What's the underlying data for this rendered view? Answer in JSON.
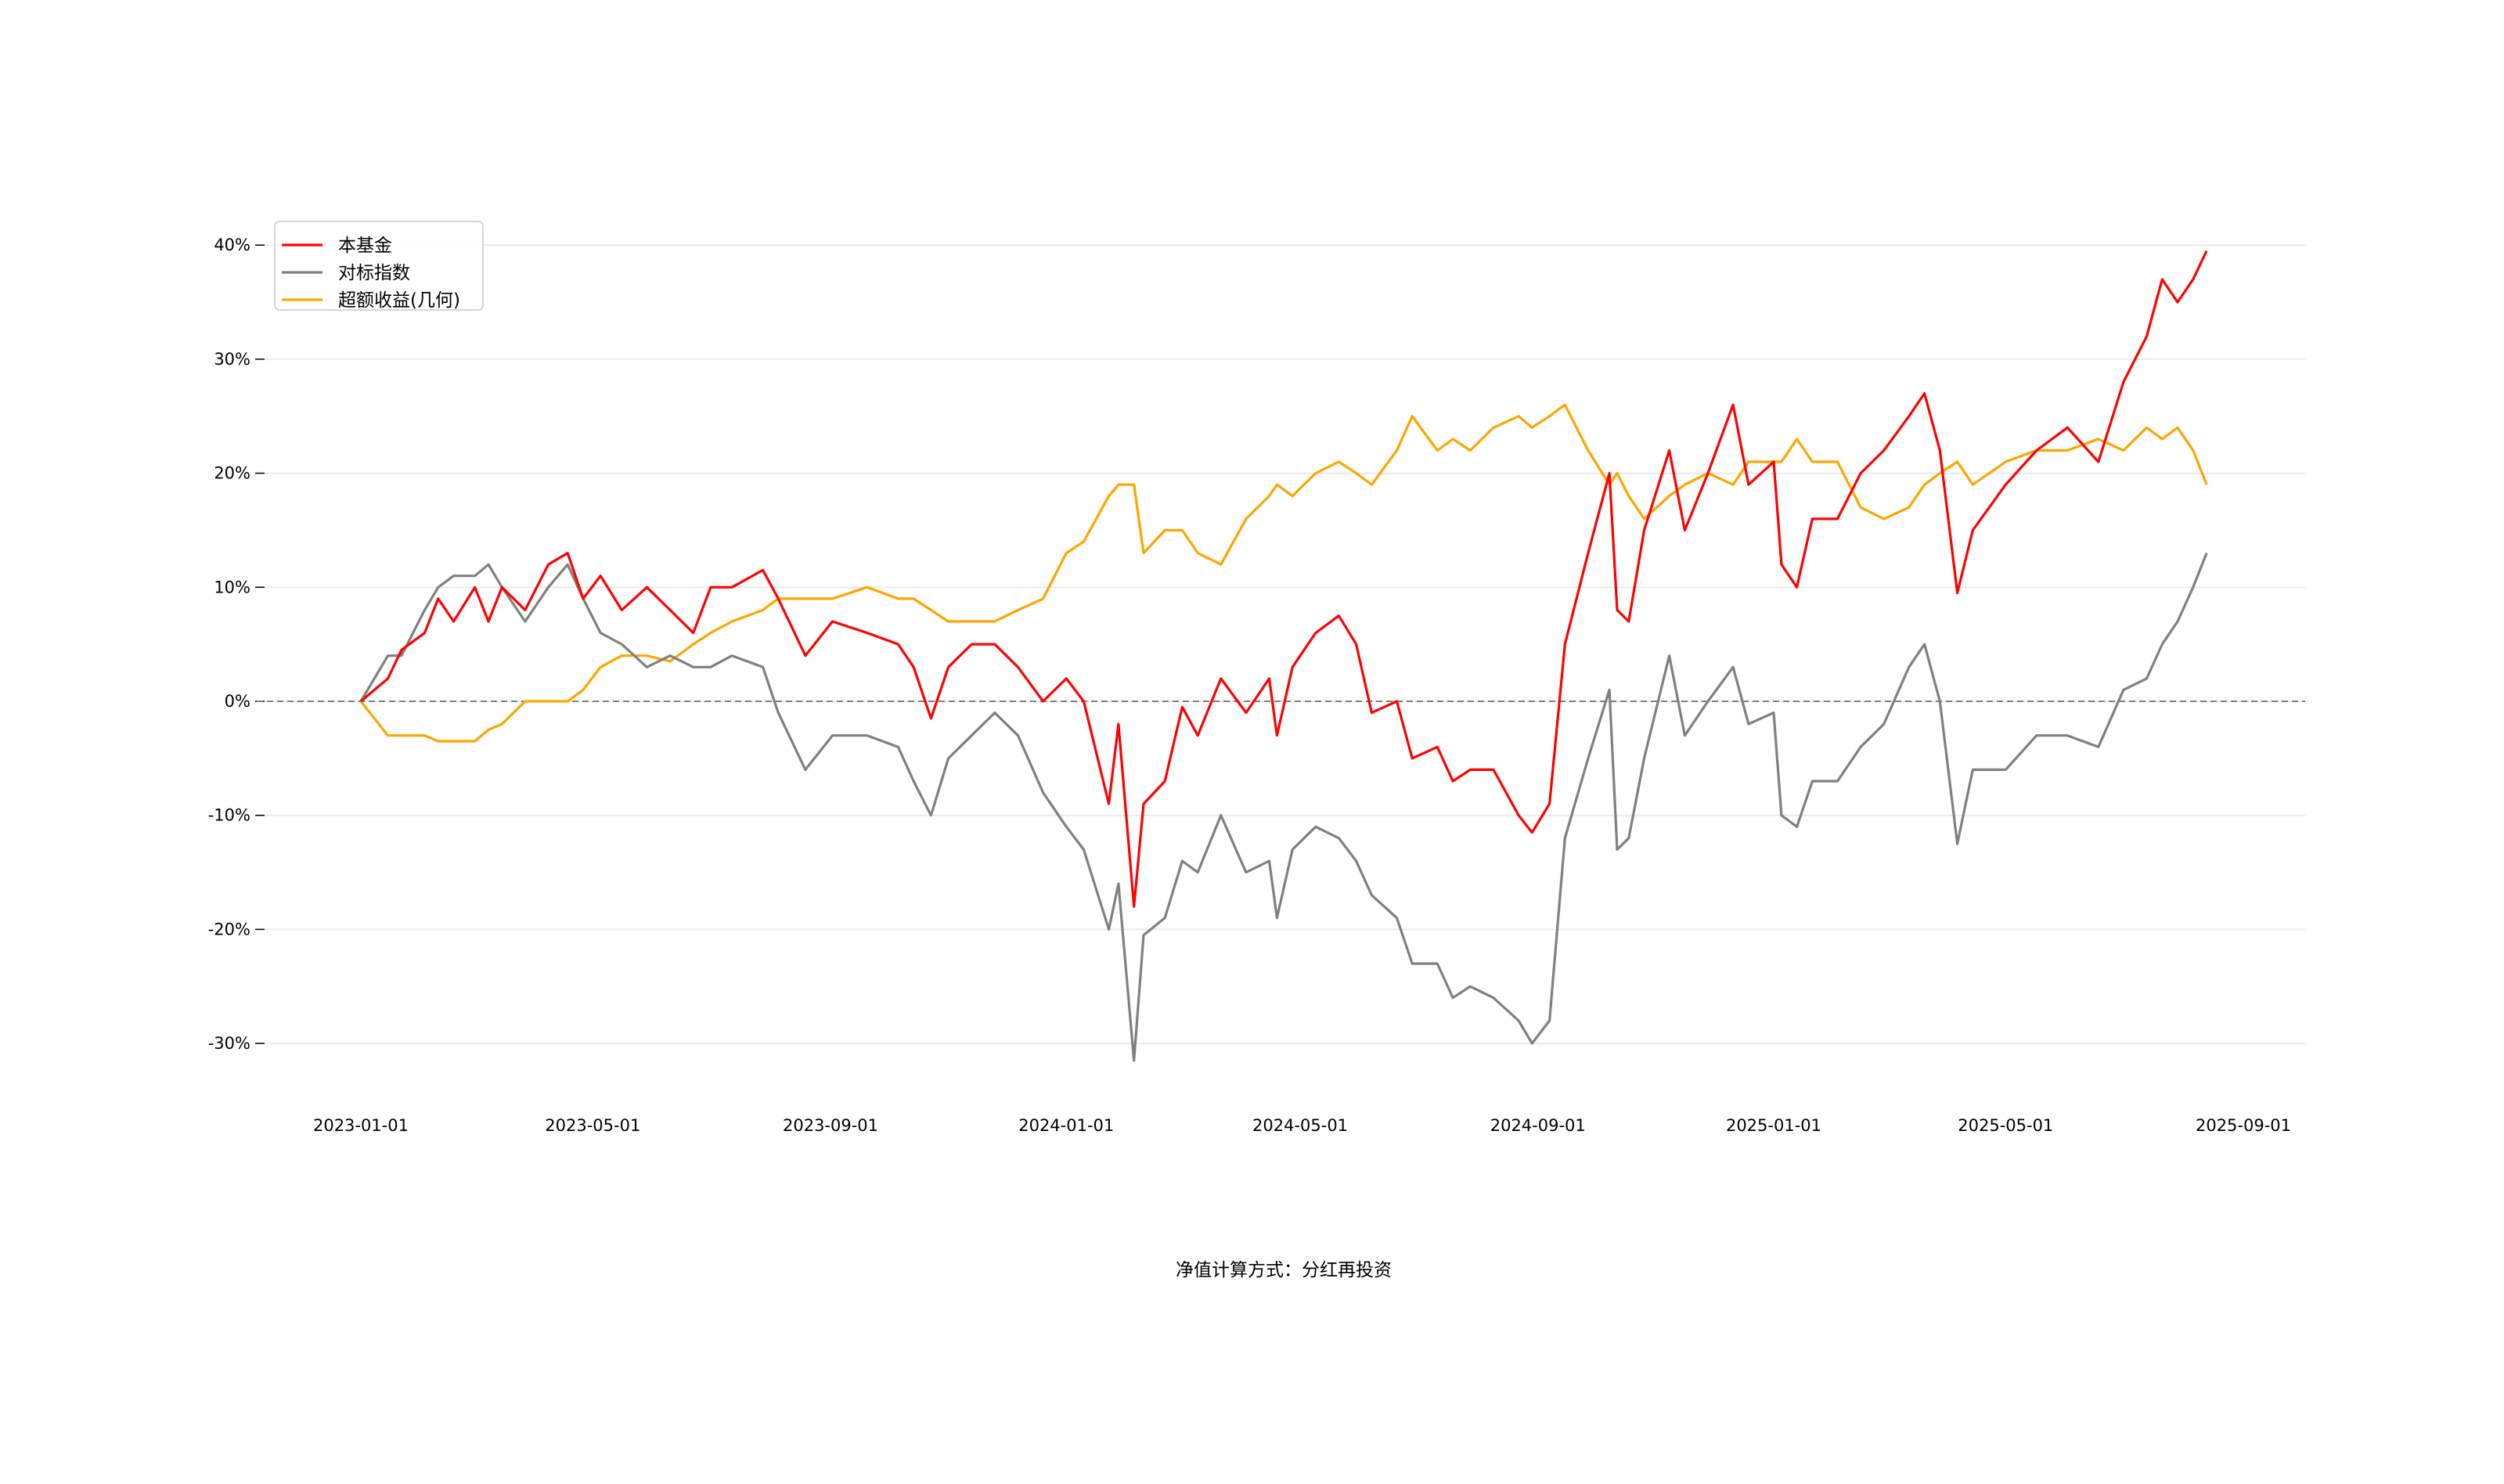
{
  "chart_data": {
    "type": "line",
    "title": "",
    "caption": "净值计算方式：分红再投资",
    "xlabel": "",
    "ylabel": "",
    "ylim": [
      -35.5,
      44
    ],
    "yticks": [
      40,
      30,
      20,
      10,
      0,
      -10,
      -20,
      -30
    ],
    "ytick_labels": [
      "40%",
      "30%",
      "20%",
      "10%",
      "0%",
      "-10%",
      "-20%",
      "-30%"
    ],
    "xticks": [
      "2023-01-01",
      "2023-05-01",
      "2023-09-01",
      "2024-01-01",
      "2024-05-01",
      "2024-09-01",
      "2025-01-01",
      "2025-05-01",
      "2025-09-01"
    ],
    "grid": "horizontal",
    "legend_position": "top-left",
    "zero_line": "dashed",
    "x": [
      "2023-01-01",
      "2023-01-15",
      "2023-01-22",
      "2023-02-03",
      "2023-02-10",
      "2023-02-18",
      "2023-03-01",
      "2023-03-08",
      "2023-03-15",
      "2023-03-27",
      "2023-04-08",
      "2023-04-18",
      "2023-04-26",
      "2023-05-05",
      "2023-05-16",
      "2023-05-29",
      "2023-06-10",
      "2023-06-22",
      "2023-07-01",
      "2023-07-12",
      "2023-07-28",
      "2023-08-05",
      "2023-08-19",
      "2023-09-02",
      "2023-09-20",
      "2023-10-06",
      "2023-10-14",
      "2023-10-23",
      "2023-11-01",
      "2023-11-13",
      "2023-11-25",
      "2023-12-07",
      "2023-12-20",
      "2024-01-01",
      "2024-01-10",
      "2024-01-23",
      "2024-01-28",
      "2024-02-05",
      "2024-02-10",
      "2024-02-21",
      "2024-03-01",
      "2024-03-09",
      "2024-03-21",
      "2024-04-03",
      "2024-04-15",
      "2024-04-19",
      "2024-04-27",
      "2024-05-09",
      "2024-05-21",
      "2024-05-30",
      "2024-06-07",
      "2024-06-20",
      "2024-06-28",
      "2024-07-11",
      "2024-07-19",
      "2024-07-28",
      "2024-08-09",
      "2024-08-22",
      "2024-08-29",
      "2024-09-07",
      "2024-09-15",
      "2024-09-27",
      "2024-10-08",
      "2024-10-12",
      "2024-10-18",
      "2024-10-26",
      "2024-11-08",
      "2024-11-16",
      "2024-11-28",
      "2024-12-11",
      "2024-12-19",
      "2025-01-01",
      "2025-01-05",
      "2025-01-13",
      "2025-01-21",
      "2025-02-03",
      "2025-02-15",
      "2025-02-27",
      "2025-03-12",
      "2025-03-20",
      "2025-03-28",
      "2025-04-06",
      "2025-04-14",
      "2025-05-01",
      "2025-05-17",
      "2025-06-02",
      "2025-06-18",
      "2025-07-01",
      "2025-07-13",
      "2025-07-21",
      "2025-07-29",
      "2025-08-06",
      "2025-08-13"
    ],
    "series": [
      {
        "name": "本基金",
        "color": "#ff0000",
        "values": [
          0,
          2,
          4.5,
          6,
          9,
          7,
          10,
          7,
          10,
          8,
          12,
          13,
          9,
          11,
          8,
          10,
          8,
          6,
          10,
          10,
          11.5,
          9,
          4,
          7,
          6,
          5,
          3,
          -1.5,
          3,
          5,
          5,
          3,
          0,
          2,
          0,
          -9,
          -2,
          -18,
          -9,
          -7,
          -0.5,
          -3,
          2,
          -1,
          2,
          -3,
          3,
          6,
          7.5,
          5,
          -1,
          0,
          -5,
          -4,
          -7,
          -6,
          -6,
          -10,
          -11.5,
          -9,
          5,
          13,
          20,
          8,
          7,
          15,
          22,
          15,
          20,
          26,
          19,
          21,
          12,
          10,
          16,
          16,
          20,
          22,
          25,
          27,
          22,
          9.5,
          15,
          19,
          22,
          24,
          21,
          28,
          32,
          37,
          35,
          37,
          39.5
        ]
      },
      {
        "name": "对标指数",
        "color": "#808080",
        "values": [
          0,
          4,
          4,
          8,
          10,
          11,
          11,
          12,
          10,
          7,
          10,
          12,
          9,
          6,
          5,
          3,
          4,
          3,
          3,
          4,
          3,
          -1,
          -6,
          -3,
          -3,
          -4,
          -7,
          -10,
          -5,
          -3,
          -1,
          -3,
          -8,
          -11,
          -13,
          -20,
          -16,
          -31.5,
          -20.5,
          -19,
          -14,
          -15,
          -10,
          -15,
          -14,
          -19,
          -13,
          -11,
          -12,
          -14,
          -17,
          -19,
          -23,
          -23,
          -26,
          -25,
          -26,
          -28,
          -30,
          -28,
          -12,
          -5,
          1,
          -13,
          -12,
          -5,
          4,
          -3,
          0,
          3,
          -2,
          -1,
          -10,
          -11,
          -7,
          -7,
          -4,
          -2,
          3,
          5,
          0,
          -12.5,
          -6,
          -6,
          -3,
          -3,
          -4,
          1,
          2,
          5,
          7,
          10,
          13
        ]
      },
      {
        "name": "超额收益(几何)",
        "color": "#ffa500",
        "values": [
          0,
          -3,
          -3,
          -3,
          -3.5,
          -3.5,
          -3.5,
          -2.5,
          -2,
          0,
          0,
          0,
          1,
          3,
          4,
          4,
          3.5,
          5,
          6,
          7,
          8,
          9,
          9,
          9,
          10,
          9,
          9,
          8,
          7,
          7,
          7,
          8,
          9,
          13,
          14,
          18,
          19,
          19,
          13,
          15,
          15,
          13,
          12,
          16,
          18,
          19,
          18,
          20,
          21,
          20,
          19,
          22,
          25,
          22,
          23,
          22,
          24,
          25,
          24,
          25,
          26,
          22,
          19,
          20,
          18,
          16,
          18,
          19,
          20,
          19,
          21,
          21,
          21,
          23,
          21,
          21,
          17,
          16,
          17,
          19,
          20,
          21,
          19,
          21,
          22,
          22,
          23,
          22,
          24,
          23,
          24,
          22,
          19
        ]
      }
    ]
  }
}
